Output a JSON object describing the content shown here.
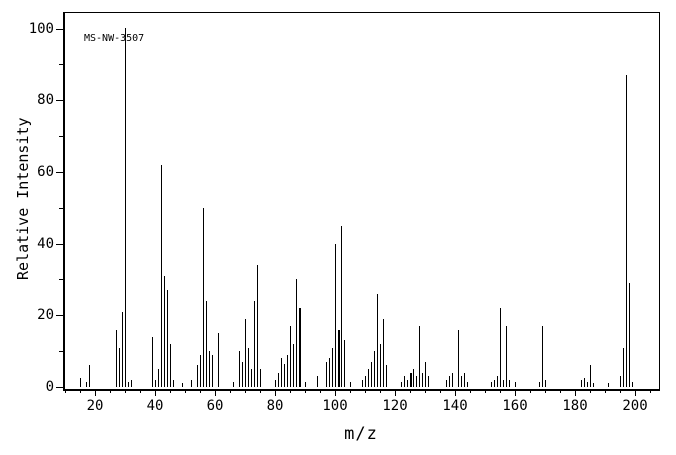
{
  "colors": {
    "foreground": "#000000",
    "background": "#ffffff"
  },
  "chart_data": {
    "type": "bar",
    "title": "MS-NW-3507",
    "xlabel": "m/z",
    "ylabel": "Relative Intensity",
    "xlim": [
      10,
      207.7
    ],
    "ylim": [
      0,
      104.5
    ],
    "grid": false,
    "legend": "none",
    "x_major_ticks": [
      20,
      40,
      60,
      80,
      100,
      120,
      140,
      160,
      180,
      200
    ],
    "x_minor_step": 5,
    "y_major_ticks": [
      0,
      20,
      40,
      60,
      80,
      100
    ],
    "y_minor_step": 10,
    "peaks": [
      {
        "mz": 15,
        "i": 2.6
      },
      {
        "mz": 17,
        "i": 1.5
      },
      {
        "mz": 18,
        "i": 6
      },
      {
        "mz": 27,
        "i": 16
      },
      {
        "mz": 28,
        "i": 11
      },
      {
        "mz": 29,
        "i": 21
      },
      {
        "mz": 30,
        "i": 100
      },
      {
        "mz": 31,
        "i": 1.5
      },
      {
        "mz": 32,
        "i": 2
      },
      {
        "mz": 39,
        "i": 14
      },
      {
        "mz": 40,
        "i": 2
      },
      {
        "mz": 41,
        "i": 5
      },
      {
        "mz": 42,
        "i": 62
      },
      {
        "mz": 43,
        "i": 31
      },
      {
        "mz": 44,
        "i": 27
      },
      {
        "mz": 45,
        "i": 12
      },
      {
        "mz": 46,
        "i": 2
      },
      {
        "mz": 49,
        "i": 1
      },
      {
        "mz": 52,
        "i": 2
      },
      {
        "mz": 54,
        "i": 6
      },
      {
        "mz": 55,
        "i": 9
      },
      {
        "mz": 56,
        "i": 50
      },
      {
        "mz": 57,
        "i": 24
      },
      {
        "mz": 58,
        "i": 10
      },
      {
        "mz": 59,
        "i": 9
      },
      {
        "mz": 61,
        "i": 15
      },
      {
        "mz": 66,
        "i": 1.5
      },
      {
        "mz": 68,
        "i": 10
      },
      {
        "mz": 69,
        "i": 7
      },
      {
        "mz": 70,
        "i": 19
      },
      {
        "mz": 71,
        "i": 11
      },
      {
        "mz": 72,
        "i": 5
      },
      {
        "mz": 73,
        "i": 24
      },
      {
        "mz": 74,
        "i": 34
      },
      {
        "mz": 75,
        "i": 5
      },
      {
        "mz": 80,
        "i": 2
      },
      {
        "mz": 81,
        "i": 4
      },
      {
        "mz": 82,
        "i": 8
      },
      {
        "mz": 83,
        "i": 6.5
      },
      {
        "mz": 84,
        "i": 9
      },
      {
        "mz": 85,
        "i": 17
      },
      {
        "mz": 86,
        "i": 12
      },
      {
        "mz": 87,
        "i": 30
      },
      {
        "mz": 88,
        "i": 22,
        "w": 2
      },
      {
        "mz": 90,
        "i": 1.5
      },
      {
        "mz": 94,
        "i": 3
      },
      {
        "mz": 97,
        "i": 7
      },
      {
        "mz": 98,
        "i": 8
      },
      {
        "mz": 99,
        "i": 11
      },
      {
        "mz": 100,
        "i": 40
      },
      {
        "mz": 101,
        "i": 16,
        "w": 2
      },
      {
        "mz": 102,
        "i": 45
      },
      {
        "mz": 103,
        "i": 13
      },
      {
        "mz": 105,
        "i": 1.5
      },
      {
        "mz": 109,
        "i": 2
      },
      {
        "mz": 110,
        "i": 3
      },
      {
        "mz": 111,
        "i": 5
      },
      {
        "mz": 112,
        "i": 7
      },
      {
        "mz": 113,
        "i": 10
      },
      {
        "mz": 114,
        "i": 26
      },
      {
        "mz": 115,
        "i": 12
      },
      {
        "mz": 116,
        "i": 19
      },
      {
        "mz": 117,
        "i": 6
      },
      {
        "mz": 122,
        "i": 1.5
      },
      {
        "mz": 123,
        "i": 3
      },
      {
        "mz": 124,
        "i": 2
      },
      {
        "mz": 125,
        "i": 4,
        "w": 2
      },
      {
        "mz": 126,
        "i": 5
      },
      {
        "mz": 127,
        "i": 3
      },
      {
        "mz": 128,
        "i": 17
      },
      {
        "mz": 129,
        "i": 4
      },
      {
        "mz": 130,
        "i": 7
      },
      {
        "mz": 131,
        "i": 3
      },
      {
        "mz": 137,
        "i": 2
      },
      {
        "mz": 138,
        "i": 3
      },
      {
        "mz": 139,
        "i": 4
      },
      {
        "mz": 141,
        "i": 16
      },
      {
        "mz": 142,
        "i": 3
      },
      {
        "mz": 143,
        "i": 4
      },
      {
        "mz": 144,
        "i": 1.5
      },
      {
        "mz": 152,
        "i": 1.5
      },
      {
        "mz": 153,
        "i": 2
      },
      {
        "mz": 154,
        "i": 3
      },
      {
        "mz": 155,
        "i": 22
      },
      {
        "mz": 156,
        "i": 2
      },
      {
        "mz": 157,
        "i": 17
      },
      {
        "mz": 158,
        "i": 2
      },
      {
        "mz": 160,
        "i": 1.5
      },
      {
        "mz": 168,
        "i": 1.5
      },
      {
        "mz": 169,
        "i": 17
      },
      {
        "mz": 170,
        "i": 2
      },
      {
        "mz": 182,
        "i": 2
      },
      {
        "mz": 183,
        "i": 2.5
      },
      {
        "mz": 184,
        "i": 1.5
      },
      {
        "mz": 185,
        "i": 6
      },
      {
        "mz": 186,
        "i": 1
      },
      {
        "mz": 191,
        "i": 1
      },
      {
        "mz": 195,
        "i": 3
      },
      {
        "mz": 196,
        "i": 11
      },
      {
        "mz": 197,
        "i": 87
      },
      {
        "mz": 198,
        "i": 29
      },
      {
        "mz": 199,
        "i": 1.5
      }
    ]
  }
}
